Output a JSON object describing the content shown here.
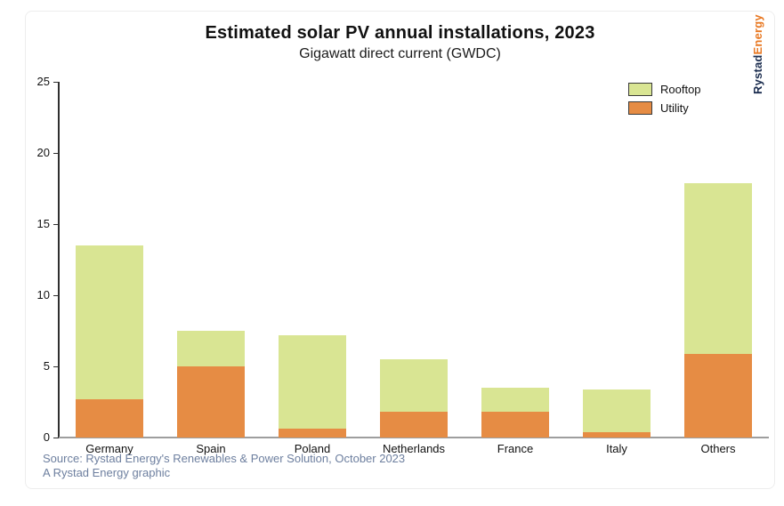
{
  "page": {
    "brand": {
      "name_dark": "Rystad",
      "name_accent": "Energy"
    },
    "source_line1": "Source: Rystad Energy's Renewables & Power Solution, October 2023",
    "source_line2": "A Rystad Energy graphic",
    "colors": {
      "rooftop": "#d9e593",
      "utility": "#e68c44",
      "axis_line": "#2f2f2f",
      "baseline": "#9e9e9e",
      "source_text": "#6d7f9f",
      "logo_dark": "#1b2d4f",
      "logo_accent": "#e87822"
    }
  },
  "chart_data": {
    "type": "bar",
    "stacked": true,
    "title": "Estimated solar PV annual installations, 2023",
    "subtitle": "Gigawatt direct current (GWDC)",
    "categories": [
      "Germany",
      "Spain",
      "Poland",
      "Netherlands",
      "France",
      "Italy",
      "Others"
    ],
    "series": [
      {
        "name": "Rooftop",
        "color": "#d9e593",
        "values": [
          10.8,
          2.5,
          6.6,
          3.7,
          1.7,
          3.0,
          12.0
        ]
      },
      {
        "name": "Utility",
        "color": "#e68c44",
        "values": [
          2.7,
          5.0,
          0.6,
          1.8,
          1.8,
          0.4,
          5.9
        ]
      }
    ],
    "stack_order_bottom_to_top": [
      "Utility",
      "Rooftop"
    ],
    "totals": [
      13.5,
      7.5,
      7.2,
      5.5,
      3.5,
      3.4,
      17.9
    ],
    "xlabel": "",
    "ylabel": "",
    "ylim": [
      0,
      25
    ],
    "yticks": [
      0,
      5,
      10,
      15,
      20,
      25
    ],
    "grid": false,
    "legend_position": "top-right"
  }
}
